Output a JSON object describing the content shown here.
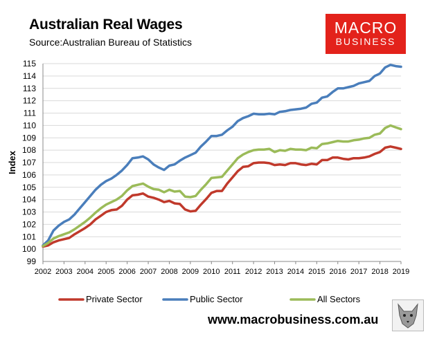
{
  "header": {
    "title": "Australian Real Wages",
    "source": "Source:Australian Bureau of Statistics"
  },
  "logo": {
    "line1": "MACRO",
    "line2": "BUSINESS",
    "color": "#e3221b"
  },
  "footer": {
    "url": "www.macrobusiness.com.au"
  },
  "chart_data": {
    "type": "line",
    "title": "Australian Real Wages",
    "xlabel": "",
    "ylabel": "Index",
    "ylim": [
      99,
      115
    ],
    "xlim": [
      2002,
      2019
    ],
    "yticks": [
      99,
      100,
      101,
      102,
      103,
      104,
      105,
      106,
      107,
      108,
      109,
      110,
      111,
      112,
      113,
      114,
      115
    ],
    "xticks": [
      2002,
      2003,
      2004,
      2005,
      2006,
      2007,
      2008,
      2009,
      2010,
      2011,
      2012,
      2013,
      2014,
      2015,
      2016,
      2017,
      2018,
      2019
    ],
    "grid": "horizontal",
    "legend_position": "bottom",
    "series": [
      {
        "name": "Private Sector",
        "color": "#c0392b",
        "points": [
          [
            2002.0,
            100.2
          ],
          [
            2002.25,
            100.3
          ],
          [
            2002.5,
            100.55
          ],
          [
            2002.75,
            100.7
          ],
          [
            2003.0,
            100.8
          ],
          [
            2003.25,
            100.9
          ],
          [
            2003.5,
            101.2
          ],
          [
            2003.75,
            101.45
          ],
          [
            2004.0,
            101.7
          ],
          [
            2004.25,
            102.0
          ],
          [
            2004.5,
            102.4
          ],
          [
            2004.75,
            102.7
          ],
          [
            2005.0,
            103.0
          ],
          [
            2005.25,
            103.15
          ],
          [
            2005.5,
            103.2
          ],
          [
            2005.75,
            103.5
          ],
          [
            2006.0,
            104.0
          ],
          [
            2006.25,
            104.35
          ],
          [
            2006.5,
            104.4
          ],
          [
            2006.75,
            104.5
          ],
          [
            2007.0,
            104.25
          ],
          [
            2007.25,
            104.15
          ],
          [
            2007.5,
            104.0
          ],
          [
            2007.75,
            103.8
          ],
          [
            2008.0,
            103.9
          ],
          [
            2008.25,
            103.7
          ],
          [
            2008.5,
            103.65
          ],
          [
            2008.75,
            103.2
          ],
          [
            2009.0,
            103.05
          ],
          [
            2009.25,
            103.1
          ],
          [
            2009.5,
            103.6
          ],
          [
            2009.75,
            104.05
          ],
          [
            2010.0,
            104.55
          ],
          [
            2010.25,
            104.7
          ],
          [
            2010.5,
            104.7
          ],
          [
            2010.75,
            105.3
          ],
          [
            2011.0,
            105.8
          ],
          [
            2011.25,
            106.3
          ],
          [
            2011.5,
            106.65
          ],
          [
            2011.75,
            106.7
          ],
          [
            2012.0,
            106.95
          ],
          [
            2012.25,
            107.0
          ],
          [
            2012.5,
            107.0
          ],
          [
            2012.75,
            106.95
          ],
          [
            2013.0,
            106.8
          ],
          [
            2013.25,
            106.85
          ],
          [
            2013.5,
            106.8
          ],
          [
            2013.75,
            106.95
          ],
          [
            2014.0,
            106.95
          ],
          [
            2014.25,
            106.85
          ],
          [
            2014.5,
            106.8
          ],
          [
            2014.75,
            106.9
          ],
          [
            2015.0,
            106.85
          ],
          [
            2015.25,
            107.2
          ],
          [
            2015.5,
            107.2
          ],
          [
            2015.75,
            107.4
          ],
          [
            2016.0,
            107.4
          ],
          [
            2016.25,
            107.3
          ],
          [
            2016.5,
            107.25
          ],
          [
            2016.75,
            107.35
          ],
          [
            2017.0,
            107.35
          ],
          [
            2017.25,
            107.4
          ],
          [
            2017.5,
            107.5
          ],
          [
            2017.75,
            107.7
          ],
          [
            2018.0,
            107.85
          ],
          [
            2018.25,
            108.2
          ],
          [
            2018.5,
            108.3
          ],
          [
            2018.75,
            108.2
          ],
          [
            2019.0,
            108.1
          ]
        ]
      },
      {
        "name": "Public Sector",
        "color": "#4a7ebb",
        "points": [
          [
            2002.0,
            100.3
          ],
          [
            2002.25,
            100.7
          ],
          [
            2002.5,
            101.5
          ],
          [
            2002.75,
            101.9
          ],
          [
            2003.0,
            102.2
          ],
          [
            2003.25,
            102.4
          ],
          [
            2003.5,
            102.8
          ],
          [
            2003.75,
            103.3
          ],
          [
            2004.0,
            103.8
          ],
          [
            2004.25,
            104.3
          ],
          [
            2004.5,
            104.8
          ],
          [
            2004.75,
            105.2
          ],
          [
            2005.0,
            105.5
          ],
          [
            2005.25,
            105.7
          ],
          [
            2005.5,
            106.0
          ],
          [
            2005.75,
            106.35
          ],
          [
            2006.0,
            106.8
          ],
          [
            2006.25,
            107.35
          ],
          [
            2006.5,
            107.4
          ],
          [
            2006.75,
            107.5
          ],
          [
            2007.0,
            107.25
          ],
          [
            2007.25,
            106.85
          ],
          [
            2007.5,
            106.6
          ],
          [
            2007.75,
            106.4
          ],
          [
            2008.0,
            106.75
          ],
          [
            2008.25,
            106.85
          ],
          [
            2008.5,
            107.15
          ],
          [
            2008.75,
            107.4
          ],
          [
            2009.0,
            107.6
          ],
          [
            2009.25,
            107.8
          ],
          [
            2009.5,
            108.3
          ],
          [
            2009.75,
            108.7
          ],
          [
            2010.0,
            109.15
          ],
          [
            2010.25,
            109.15
          ],
          [
            2010.5,
            109.25
          ],
          [
            2010.75,
            109.6
          ],
          [
            2011.0,
            109.9
          ],
          [
            2011.25,
            110.35
          ],
          [
            2011.5,
            110.6
          ],
          [
            2011.75,
            110.75
          ],
          [
            2012.0,
            110.95
          ],
          [
            2012.25,
            110.9
          ],
          [
            2012.5,
            110.9
          ],
          [
            2012.75,
            110.95
          ],
          [
            2013.0,
            110.9
          ],
          [
            2013.25,
            111.1
          ],
          [
            2013.5,
            111.15
          ],
          [
            2013.75,
            111.25
          ],
          [
            2014.0,
            111.3
          ],
          [
            2014.25,
            111.35
          ],
          [
            2014.5,
            111.45
          ],
          [
            2014.75,
            111.75
          ],
          [
            2015.0,
            111.85
          ],
          [
            2015.25,
            112.25
          ],
          [
            2015.5,
            112.35
          ],
          [
            2015.75,
            112.7
          ],
          [
            2016.0,
            113.0
          ],
          [
            2016.25,
            113.0
          ],
          [
            2016.5,
            113.1
          ],
          [
            2016.75,
            113.2
          ],
          [
            2017.0,
            113.4
          ],
          [
            2017.25,
            113.5
          ],
          [
            2017.5,
            113.6
          ],
          [
            2017.75,
            114.0
          ],
          [
            2018.0,
            114.2
          ],
          [
            2018.25,
            114.7
          ],
          [
            2018.5,
            114.9
          ],
          [
            2018.75,
            114.8
          ],
          [
            2019.0,
            114.75
          ]
        ]
      },
      {
        "name": "All Sectors",
        "color": "#9bbb59",
        "points": [
          [
            2002.0,
            100.25
          ],
          [
            2002.25,
            100.5
          ],
          [
            2002.5,
            100.85
          ],
          [
            2002.75,
            101.05
          ],
          [
            2003.0,
            101.2
          ],
          [
            2003.25,
            101.35
          ],
          [
            2003.5,
            101.6
          ],
          [
            2003.75,
            101.9
          ],
          [
            2004.0,
            102.2
          ],
          [
            2004.25,
            102.55
          ],
          [
            2004.5,
            102.95
          ],
          [
            2004.75,
            103.3
          ],
          [
            2005.0,
            103.6
          ],
          [
            2005.25,
            103.8
          ],
          [
            2005.5,
            104.0
          ],
          [
            2005.75,
            104.3
          ],
          [
            2006.0,
            104.75
          ],
          [
            2006.25,
            105.1
          ],
          [
            2006.5,
            105.2
          ],
          [
            2006.75,
            105.3
          ],
          [
            2007.0,
            105.05
          ],
          [
            2007.25,
            104.85
          ],
          [
            2007.5,
            104.8
          ],
          [
            2007.75,
            104.6
          ],
          [
            2008.0,
            104.8
          ],
          [
            2008.25,
            104.65
          ],
          [
            2008.5,
            104.7
          ],
          [
            2008.75,
            104.25
          ],
          [
            2009.0,
            104.2
          ],
          [
            2009.25,
            104.3
          ],
          [
            2009.5,
            104.8
          ],
          [
            2009.75,
            105.25
          ],
          [
            2010.0,
            105.75
          ],
          [
            2010.25,
            105.8
          ],
          [
            2010.5,
            105.85
          ],
          [
            2010.75,
            106.35
          ],
          [
            2011.0,
            106.85
          ],
          [
            2011.25,
            107.35
          ],
          [
            2011.5,
            107.65
          ],
          [
            2011.75,
            107.85
          ],
          [
            2012.0,
            108.0
          ],
          [
            2012.25,
            108.05
          ],
          [
            2012.5,
            108.05
          ],
          [
            2012.75,
            108.1
          ],
          [
            2013.0,
            107.85
          ],
          [
            2013.25,
            108.0
          ],
          [
            2013.5,
            107.95
          ],
          [
            2013.75,
            108.1
          ],
          [
            2014.0,
            108.05
          ],
          [
            2014.25,
            108.05
          ],
          [
            2014.5,
            108.0
          ],
          [
            2014.75,
            108.2
          ],
          [
            2015.0,
            108.15
          ],
          [
            2015.25,
            108.5
          ],
          [
            2015.5,
            108.55
          ],
          [
            2015.75,
            108.65
          ],
          [
            2016.0,
            108.75
          ],
          [
            2016.25,
            108.7
          ],
          [
            2016.5,
            108.7
          ],
          [
            2016.75,
            108.8
          ],
          [
            2017.0,
            108.85
          ],
          [
            2017.25,
            108.95
          ],
          [
            2017.5,
            109.0
          ],
          [
            2017.75,
            109.25
          ],
          [
            2018.0,
            109.35
          ],
          [
            2018.25,
            109.8
          ],
          [
            2018.5,
            110.0
          ],
          [
            2018.75,
            109.85
          ],
          [
            2019.0,
            109.7
          ]
        ]
      }
    ]
  }
}
